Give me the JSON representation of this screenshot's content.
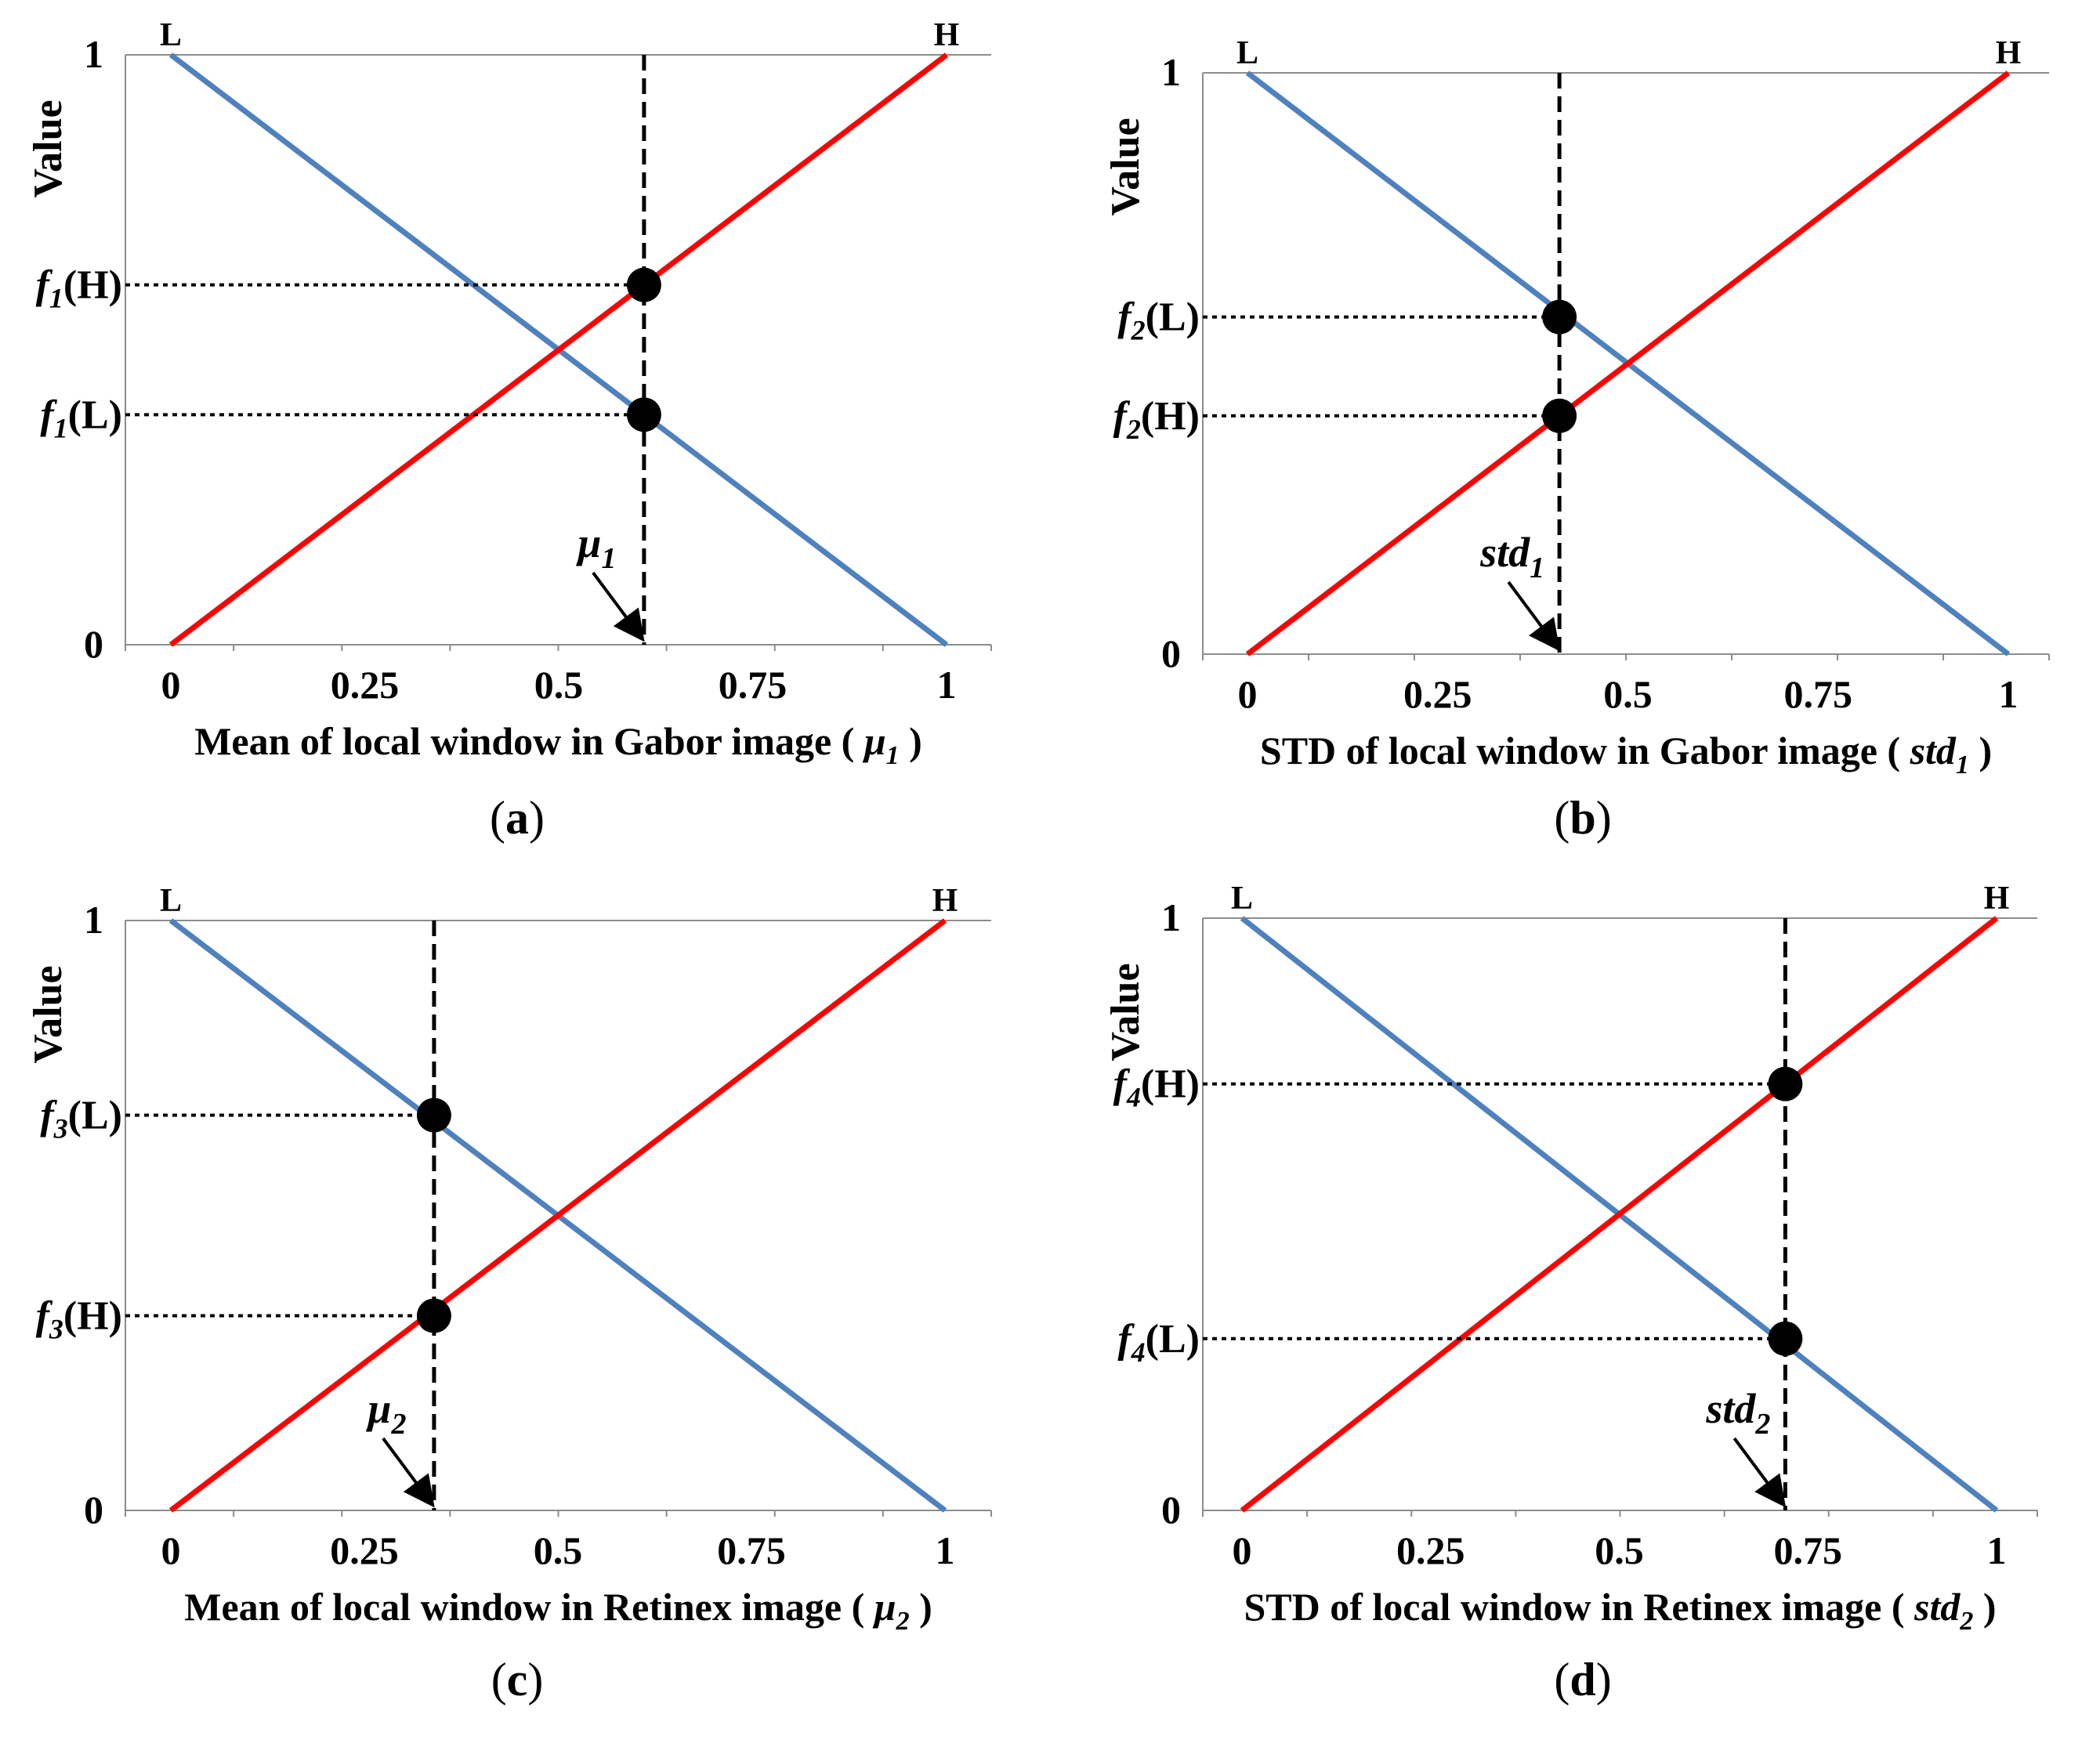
{
  "colors": {
    "low_line": "#4F81BD",
    "high_line": "#FF0000",
    "guides": "#000000",
    "markers": "#000000"
  },
  "chart_data": [
    {
      "type": "line",
      "panel": "a",
      "panel_label": "a",
      "xlabel_prefix": "Mean of local window in Gabor image ( ",
      "xlabel_var": "μ",
      "xlabel_sub": "1",
      "xlabel_suffix": ")",
      "ylabel": "Value",
      "xticks": [
        "0",
        "0.25",
        "0.5",
        "0.75",
        "1"
      ],
      "yticks": [
        "0",
        "1"
      ],
      "xlim": [
        0,
        1
      ],
      "ylim": [
        0,
        1
      ],
      "series": [
        {
          "name": "L",
          "color": "#4F81BD",
          "x": [
            0,
            1
          ],
          "y": [
            1,
            0
          ]
        },
        {
          "name": "H",
          "color": "#FF0000",
          "x": [
            0,
            1
          ],
          "y": [
            0,
            1
          ]
        }
      ],
      "marker_x": 0.61,
      "annotation": {
        "var": "μ",
        "sub": "1"
      },
      "points": [
        {
          "func": "f",
          "sub": "1",
          "set": "H",
          "y": 0.61
        },
        {
          "func": "f",
          "sub": "1",
          "set": "L",
          "y": 0.39
        }
      ]
    },
    {
      "type": "line",
      "panel": "b",
      "panel_label": "b",
      "xlabel_prefix": "STD of local window in Gabor image ( ",
      "xlabel_var": "std",
      "xlabel_sub": "1",
      "xlabel_suffix": ")",
      "ylabel": "Value",
      "xticks": [
        "0",
        "0.25",
        "0.5",
        "0.75",
        "1"
      ],
      "yticks": [
        "0",
        "1"
      ],
      "xlim": [
        0,
        1
      ],
      "ylim": [
        0,
        1
      ],
      "series": [
        {
          "name": "L",
          "color": "#4F81BD",
          "x": [
            0,
            1
          ],
          "y": [
            1,
            0
          ]
        },
        {
          "name": "H",
          "color": "#FF0000",
          "x": [
            0,
            1
          ],
          "y": [
            0,
            1
          ]
        }
      ],
      "marker_x": 0.41,
      "annotation": {
        "var": "std",
        "sub": "1"
      },
      "points": [
        {
          "func": "f",
          "sub": "2",
          "set": "L",
          "y": 0.58
        },
        {
          "func": "f",
          "sub": "2",
          "set": "H",
          "y": 0.41
        }
      ]
    },
    {
      "type": "line",
      "panel": "c",
      "panel_label": "c",
      "xlabel_prefix": "Mean of local window in Retinex image ( ",
      "xlabel_var": "μ",
      "xlabel_sub": "2",
      "xlabel_suffix": ")",
      "ylabel": "Value",
      "xticks": [
        "0",
        "0.25",
        "0.5",
        "0.75",
        "1"
      ],
      "yticks": [
        "0",
        "1"
      ],
      "xlim": [
        0,
        1
      ],
      "ylim": [
        0,
        1
      ],
      "series": [
        {
          "name": "L",
          "color": "#4F81BD",
          "x": [
            0,
            1
          ],
          "y": [
            1,
            0
          ]
        },
        {
          "name": "H",
          "color": "#FF0000",
          "x": [
            0,
            1
          ],
          "y": [
            0,
            1
          ]
        }
      ],
      "marker_x": 0.34,
      "annotation": {
        "var": "μ",
        "sub": "2"
      },
      "points": [
        {
          "func": "f",
          "sub": "3",
          "set": "L",
          "y": 0.67
        },
        {
          "func": "f",
          "sub": "3",
          "set": "H",
          "y": 0.33
        }
      ]
    },
    {
      "type": "line",
      "panel": "d",
      "panel_label": "d",
      "xlabel_prefix": "STD of local window in Retinex image ( ",
      "xlabel_var": "std",
      "xlabel_sub": "2",
      "xlabel_suffix": ")",
      "ylabel": "Value",
      "xticks": [
        "0",
        "0.25",
        "0.5",
        "0.75",
        "1"
      ],
      "yticks": [
        "0",
        "1"
      ],
      "xlim": [
        0,
        1
      ],
      "ylim": [
        0,
        1
      ],
      "series": [
        {
          "name": "L",
          "color": "#4F81BD",
          "x": [
            0,
            1
          ],
          "y": [
            1,
            0
          ]
        },
        {
          "name": "H",
          "color": "#FF0000",
          "x": [
            0,
            1
          ],
          "y": [
            0,
            1
          ]
        }
      ],
      "marker_x": 0.72,
      "annotation": {
        "var": "std",
        "sub": "2"
      },
      "points": [
        {
          "func": "f",
          "sub": "4",
          "set": "H",
          "y": 0.72
        },
        {
          "func": "f",
          "sub": "4",
          "set": "L",
          "y": 0.29
        }
      ]
    }
  ]
}
